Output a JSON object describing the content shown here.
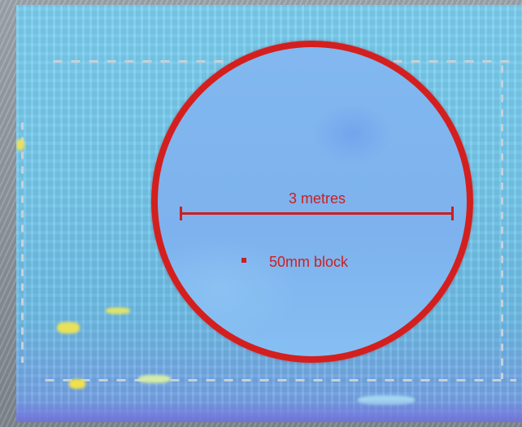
{
  "image": {
    "description_colors": {
      "scan_background": "#78cbef",
      "circle_border": "#d41f1f",
      "annotation_text": "#cc1f1f"
    }
  },
  "annotations": {
    "scale_label": "3 metres",
    "block_label": "50mm block"
  }
}
